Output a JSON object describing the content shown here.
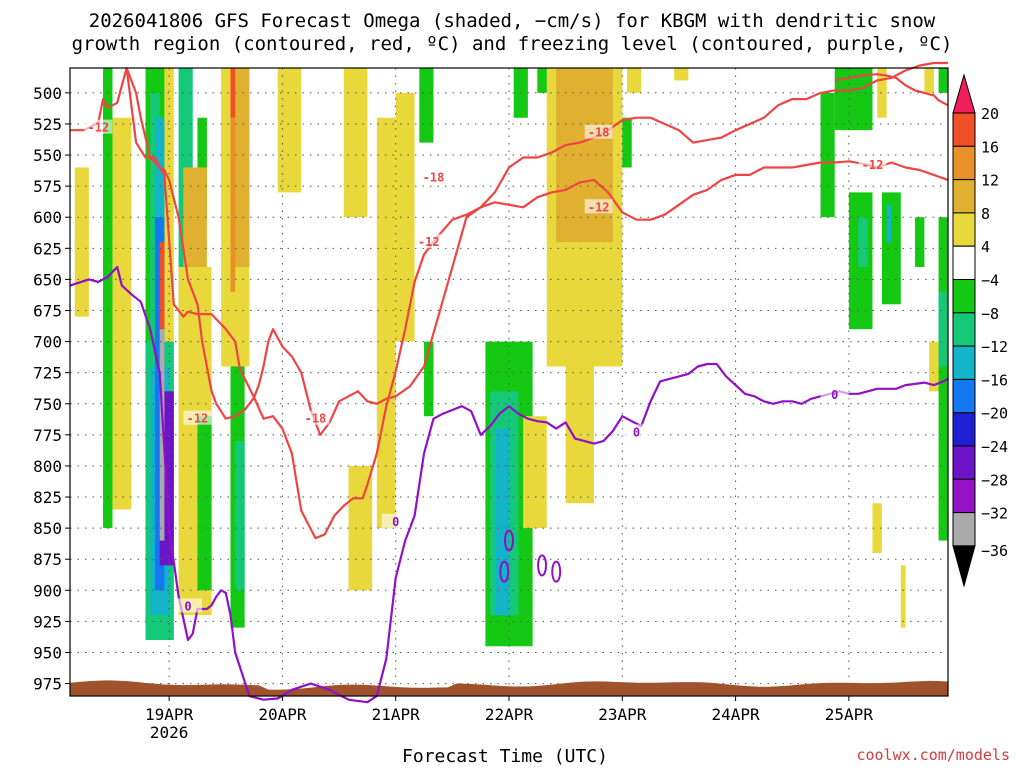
{
  "title_line1": "2026041806 GFS Forecast Omega (shaded, −cm/s) for KBGM with dendritic snow",
  "title_line2": "growth region (contoured, red, ºC) and freezing level (contoured, purple, ºC)",
  "x_axis_title": "Forecast Time (UTC)",
  "credit": "coolwx.com/models",
  "colors": {
    "temp_contour": "#ee4444",
    "freezing_contour": "#9010c8",
    "ground": "#a0522d",
    "grid": "#555555"
  },
  "chart_data": {
    "type": "heatmap",
    "title": "2026041806 GFS Forecast Omega (shaded, −cm/s) for KBGM with dendritic snow growth region (contoured, red, ºC) and freezing level (contoured, purple, ºC)",
    "xlabel": "Forecast Time (UTC)",
    "ylabel": "Pressure (hPa)",
    "x_ticks": [
      "19APR",
      "20APR",
      "21APR",
      "22APR",
      "23APR",
      "24APR",
      "25APR"
    ],
    "x_sublabel": "2026",
    "x_range_hours": [
      -21,
      165
    ],
    "y_ticks": [
      500,
      525,
      550,
      575,
      600,
      625,
      650,
      675,
      700,
      725,
      750,
      775,
      800,
      825,
      850,
      875,
      900,
      925,
      950,
      975
    ],
    "y_range": [
      480,
      985
    ],
    "colorbar": {
      "boundaries": [
        20,
        16,
        12,
        8,
        4,
        -4,
        -8,
        -12,
        -16,
        -20,
        -24,
        -28,
        -32,
        -36
      ],
      "colors": [
        "#f01e5a",
        "#f05028",
        "#e8902a",
        "#e0b030",
        "#e8d83c",
        "#ffffff",
        "#14c814",
        "#14c878",
        "#14b4c8",
        "#1478f0",
        "#1e1ed2",
        "#6e14c8",
        "#9614c8",
        "#aaaaaa",
        "#000000"
      ]
    },
    "contour_labels": [
      {
        "value": "-12",
        "hours": -15,
        "pressure": 528
      },
      {
        "value": "-18",
        "hours": 56,
        "pressure": 568
      },
      {
        "value": "-12",
        "hours": 55,
        "pressure": 620
      },
      {
        "value": "-18",
        "hours": 91,
        "pressure": 532
      },
      {
        "value": "-12",
        "hours": 91,
        "pressure": 592
      },
      {
        "value": "-12",
        "hours": 149,
        "pressure": 558
      },
      {
        "value": "-12",
        "hours": 6,
        "pressure": 762
      },
      {
        "value": "-18",
        "hours": 31,
        "pressure": 762
      },
      {
        "value": "0",
        "hours": 4,
        "pressure": 913
      },
      {
        "value": "0",
        "hours": 48,
        "pressure": 845
      },
      {
        "value": "0",
        "hours": 99,
        "pressure": 773
      },
      {
        "value": "0",
        "hours": 141,
        "pressure": 743
      }
    ],
    "series": [
      {
        "name": "-12C contour (lower)",
        "color": "#ee4444",
        "hours": [
          -21,
          -18,
          -15,
          -14,
          -13,
          -11,
          -9,
          -7,
          -5,
          -3,
          -2,
          -1,
          1,
          3,
          4,
          6,
          9,
          12,
          14,
          15,
          18,
          20,
          22,
          24,
          26,
          28,
          31,
          33,
          35,
          37,
          39,
          41,
          42,
          44,
          46,
          48,
          50,
          52,
          54,
          57,
          60,
          63,
          66,
          69,
          72,
          75,
          78,
          81,
          84,
          87,
          90,
          93,
          96,
          99,
          102,
          105,
          108,
          111,
          114,
          117,
          120,
          123,
          126,
          129,
          132,
          135,
          138,
          141,
          144,
          147,
          150,
          153,
          156,
          159,
          162,
          165
        ],
        "values": [
          530,
          530,
          524,
          505,
          512,
          508,
          480,
          540,
          552,
          552,
          560,
          566,
          670,
          680,
          676,
          678,
          678,
          690,
          700,
          722,
          745,
          762,
          760,
          770,
          790,
          836,
          858,
          855,
          840,
          832,
          826,
          826,
          815,
          790,
          752,
          724,
          690,
          652,
          630,
          615,
          602,
          598,
          592,
          588,
          590,
          592,
          584,
          580,
          578,
          572,
          570,
          580,
          596,
          602,
          602,
          598,
          590,
          582,
          578,
          570,
          566,
          566,
          560,
          560,
          560,
          558,
          556,
          556,
          555,
          557,
          560,
          556,
          560,
          562,
          566,
          570
        ]
      },
      {
        "name": "-18C contour",
        "color": "#ee4444",
        "hours": [
          -9,
          -7,
          -6,
          -4,
          -2,
          -1,
          0,
          1,
          2,
          4,
          5,
          6,
          7,
          8,
          9,
          10,
          12,
          14,
          16,
          18,
          19,
          20,
          21,
          22,
          24,
          26,
          28,
          30,
          32,
          34,
          36,
          38,
          40,
          42,
          44,
          46,
          48,
          51,
          54,
          57,
          60,
          63,
          66,
          69,
          72,
          75,
          78,
          81,
          84,
          87,
          90,
          93,
          96,
          99,
          102,
          105,
          108,
          111,
          114,
          117,
          120,
          123,
          126,
          129,
          132,
          135,
          138,
          141,
          144,
          147,
          150,
          153,
          156,
          159,
          162,
          165
        ],
        "values": [
          480,
          500,
          520,
          552,
          560,
          562,
          570,
          585,
          600,
          650,
          660,
          670,
          700,
          720,
          740,
          750,
          762,
          760,
          755,
          745,
          735,
          720,
          700,
          690,
          704,
          712,
          725,
          755,
          775,
          765,
          748,
          744,
          740,
          748,
          750,
          746,
          744,
          736,
          720,
          680,
          640,
          600,
          592,
          580,
          560,
          552,
          552,
          548,
          542,
          540,
          536,
          530,
          522,
          520,
          520,
          525,
          530,
          540,
          538,
          536,
          530,
          525,
          520,
          510,
          505,
          505,
          500,
          498,
          498,
          496,
          490,
          488,
          482,
          478,
          476,
          476
        ]
      },
      {
        "name": "-12C contour (upper right)",
        "color": "#ee4444",
        "hours": [
          141,
          144,
          147,
          150,
          152,
          154,
          156,
          158,
          160,
          162,
          163,
          164,
          165
        ],
        "values": [
          490,
          488,
          486,
          485,
          486,
          488,
          494,
          498,
          500,
          502,
          506,
          508,
          510
        ]
      },
      {
        "name": "0C freezing level",
        "color": "#9010c8",
        "hours": [
          -21,
          -17,
          -15,
          -13,
          -11,
          -10,
          -8,
          -6,
          -4,
          -2,
          0,
          2,
          4,
          5,
          6,
          8,
          9,
          10,
          11,
          12,
          13,
          14,
          17,
          20,
          23,
          26,
          30,
          34,
          38,
          42,
          44,
          46,
          48,
          50,
          52,
          54,
          56,
          58,
          60,
          62,
          64,
          66,
          68,
          70,
          72,
          74,
          76,
          78,
          80,
          82,
          84,
          86,
          88,
          90,
          92,
          94,
          96,
          98,
          100,
          102,
          104,
          106,
          108,
          110,
          112,
          114,
          116,
          118,
          120,
          122,
          124,
          126,
          128,
          130,
          132,
          134,
          136,
          138,
          140,
          142,
          144,
          146,
          148,
          150,
          152,
          154,
          156,
          158,
          160,
          162,
          164,
          165
        ],
        "values": [
          655,
          650,
          652,
          648,
          640,
          655,
          662,
          668,
          690,
          725,
          850,
          905,
          940,
          935,
          915,
          915,
          912,
          905,
          900,
          902,
          920,
          950,
          985,
          988,
          987,
          980,
          975,
          980,
          988,
          990,
          985,
          955,
          890,
          860,
          840,
          790,
          762,
          758,
          755,
          752,
          756,
          775,
          768,
          758,
          752,
          758,
          762,
          764,
          765,
          770,
          765,
          778,
          780,
          782,
          780,
          772,
          760,
          764,
          768,
          748,
          732,
          730,
          728,
          726,
          720,
          718,
          718,
          728,
          735,
          742,
          744,
          748,
          750,
          748,
          748,
          750,
          746,
          744,
          742,
          740,
          742,
          742,
          740,
          738,
          738,
          738,
          735,
          734,
          733,
          735,
          732,
          730
        ]
      }
    ],
    "freezing_blobs": [
      {
        "hours": 72,
        "pressure": 860
      },
      {
        "hours": 71,
        "pressure": 885
      },
      {
        "hours": 79,
        "pressure": 880
      },
      {
        "hours": 82,
        "pressure": 885
      }
    ],
    "omega_regions": [
      {
        "category": "4..8",
        "h1": -20,
        "h2": -17,
        "p1": 560,
        "p2": 680
      },
      {
        "category": "4..8",
        "h1": -12,
        "h2": -8,
        "p1": 520,
        "p2": 835
      },
      {
        "category": "-8..-4",
        "h1": -14,
        "h2": -12,
        "p1": 480,
        "p2": 850
      },
      {
        "category": "4..8",
        "h1": -3,
        "h2": 1,
        "p1": 480,
        "p2": 700
      },
      {
        "category": "-8..-4",
        "h1": -5,
        "h2": -1,
        "p1": 480,
        "p2": 935
      },
      {
        "category": "-12..-8",
        "h1": -4,
        "h2": -2,
        "p1": 500,
        "p2": 900
      },
      {
        "category": "-16..-12",
        "h1": -3,
        "h2": -1,
        "p1": 520,
        "p2": 925
      },
      {
        "category": "-12..-8",
        "h1": -5,
        "h2": 1,
        "p1": 700,
        "p2": 940
      },
      {
        "category": "-16..-12",
        "h1": -4,
        "h2": 0,
        "p1": 720,
        "p2": 920
      },
      {
        "category": "-20..-16",
        "h1": -3,
        "h2": -1,
        "p1": 600,
        "p2": 900
      },
      {
        "category": "-28..-24",
        "h1": -2,
        "h2": 1,
        "p1": 740,
        "p2": 880
      },
      {
        "category": "-36..-32",
        "h1": -2,
        "h2": -1,
        "p1": 690,
        "p2": 860
      },
      {
        "category": "16..20",
        "h1": -2,
        "h2": -1,
        "p1": 620,
        "p2": 690
      },
      {
        "category": "-12..-8",
        "h1": 2,
        "h2": 5,
        "p1": 480,
        "p2": 700
      },
      {
        "category": "-8..-4",
        "h1": 6,
        "h2": 8,
        "p1": 520,
        "p2": 600
      },
      {
        "category": "8..12",
        "h1": 3,
        "h2": 8,
        "p1": 560,
        "p2": 780
      },
      {
        "category": "12..16",
        "h1": 4,
        "h2": 6,
        "p1": 680,
        "p2": 720
      },
      {
        "category": "4..8",
        "h1": 2,
        "h2": 9,
        "p1": 640,
        "p2": 920
      },
      {
        "category": "4..8",
        "h1": 11,
        "h2": 17,
        "p1": 480,
        "p2": 720
      },
      {
        "category": "8..12",
        "h1": 13,
        "h2": 17,
        "p1": 480,
        "p2": 640
      },
      {
        "category": "12..16",
        "h1": 13,
        "h2": 14,
        "p1": 480,
        "p2": 660
      },
      {
        "category": "16..20",
        "h1": 13,
        "h2": 14,
        "p1": 480,
        "p2": 520
      },
      {
        "category": "-8..-4",
        "h1": 6,
        "h2": 9,
        "p1": 760,
        "p2": 900
      },
      {
        "category": "-8..-4",
        "h1": 13,
        "h2": 16,
        "p1": 720,
        "p2": 930
      },
      {
        "category": "-12..-8",
        "h1": 14,
        "h2": 16,
        "p1": 780,
        "p2": 900
      },
      {
        "category": "4..8",
        "h1": 23,
        "h2": 28,
        "p1": 480,
        "p2": 580
      },
      {
        "category": "4..8",
        "h1": 37,
        "h2": 42,
        "p1": 480,
        "p2": 600
      },
      {
        "category": "4..8",
        "h1": 38,
        "h2": 43,
        "p1": 800,
        "p2": 900
      },
      {
        "category": "4..8",
        "h1": 44,
        "h2": 48,
        "p1": 520,
        "p2": 850
      },
      {
        "category": "4..8",
        "h1": 48,
        "h2": 52,
        "p1": 500,
        "p2": 700
      },
      {
        "category": "-8..-4",
        "h1": 53,
        "h2": 56,
        "p1": 480,
        "p2": 540
      },
      {
        "category": "-8..-4",
        "h1": 54,
        "h2": 56,
        "p1": 700,
        "p2": 760
      },
      {
        "category": "-8..-4",
        "h1": 67,
        "h2": 77,
        "p1": 700,
        "p2": 945
      },
      {
        "category": "-12..-8",
        "h1": 68,
        "h2": 74,
        "p1": 740,
        "p2": 920
      },
      {
        "category": "-16..-12",
        "h1": 69,
        "h2": 72,
        "p1": 770,
        "p2": 920
      },
      {
        "category": "4..8",
        "h1": 75,
        "h2": 80,
        "p1": 760,
        "p2": 850
      },
      {
        "category": "-8..-4",
        "h1": 73,
        "h2": 76,
        "p1": 480,
        "p2": 520
      },
      {
        "category": "-8..-4",
        "h1": 78,
        "h2": 82,
        "p1": 480,
        "p2": 500
      },
      {
        "category": "4..8",
        "h1": 80,
        "h2": 96,
        "p1": 480,
        "p2": 720
      },
      {
        "category": "8..12",
        "h1": 82,
        "h2": 94,
        "p1": 480,
        "p2": 620
      },
      {
        "category": "4..8",
        "h1": 84,
        "h2": 90,
        "p1": 700,
        "p2": 830
      },
      {
        "category": "-8..-4",
        "h1": 96,
        "h2": 98,
        "p1": 520,
        "p2": 560
      },
      {
        "category": "4..8",
        "h1": 97,
        "h2": 100,
        "p1": 480,
        "p2": 500
      },
      {
        "category": "4..8",
        "h1": 107,
        "h2": 110,
        "p1": 480,
        "p2": 490
      },
      {
        "category": "-8..-4",
        "h1": 138,
        "h2": 141,
        "p1": 500,
        "p2": 600
      },
      {
        "category": "-8..-4",
        "h1": 141,
        "h2": 149,
        "p1": 480,
        "p2": 530
      },
      {
        "category": "-8..-4",
        "h1": 144,
        "h2": 149,
        "p1": 580,
        "p2": 690
      },
      {
        "category": "-12..-8",
        "h1": 146,
        "h2": 148,
        "p1": 600,
        "p2": 640
      },
      {
        "category": "-8..-4",
        "h1": 151,
        "h2": 155,
        "p1": 580,
        "p2": 670
      },
      {
        "category": "-16..-12",
        "h1": 152,
        "h2": 153,
        "p1": 590,
        "p2": 620
      },
      {
        "category": "4..8",
        "h1": 149,
        "h2": 151,
        "p1": 830,
        "p2": 870
      },
      {
        "category": "4..8",
        "h1": 155,
        "h2": 156,
        "p1": 880,
        "p2": 930
      },
      {
        "category": "4..8",
        "h1": 161,
        "h2": 165,
        "p1": 700,
        "p2": 740
      },
      {
        "category": "4..8",
        "h1": 150,
        "h2": 152,
        "p1": 480,
        "p2": 520
      },
      {
        "category": "4..8",
        "h1": 160,
        "h2": 162,
        "p1": 480,
        "p2": 500
      },
      {
        "category": "-8..-4",
        "h1": 163,
        "h2": 165,
        "p1": 600,
        "p2": 860
      },
      {
        "category": "-12..-8",
        "h1": 163,
        "h2": 165,
        "p1": 660,
        "p2": 720
      },
      {
        "category": "-8..-4",
        "h1": 158,
        "h2": 160,
        "p1": 600,
        "p2": 640
      },
      {
        "category": "-8..-4",
        "h1": 163,
        "h2": 165,
        "p1": 480,
        "p2": 500
      }
    ],
    "ground_surface_hpa": 975
  }
}
